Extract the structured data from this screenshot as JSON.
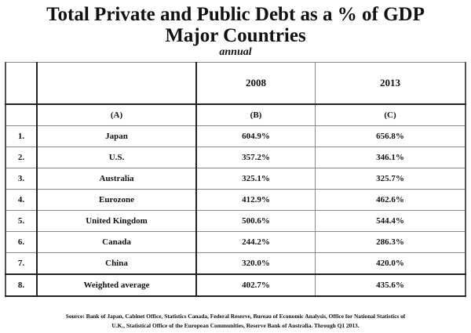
{
  "title_line1": "Total Private and Public Debt as a % of GDP",
  "title_line2": "Major Countries",
  "subtitle": "annual",
  "table": {
    "year_headers": [
      "2008",
      "2013"
    ],
    "column_labels": [
      "(A)",
      "(B)",
      "(C)"
    ],
    "rows": [
      {
        "num": "1.",
        "country": "Japan",
        "y2008": "604.9%",
        "y2013": "656.8%"
      },
      {
        "num": "2.",
        "country": "U.S.",
        "y2008": "357.2%",
        "y2013": "346.1%"
      },
      {
        "num": "3.",
        "country": "Australia",
        "y2008": "325.1%",
        "y2013": "325.7%"
      },
      {
        "num": "4.",
        "country": "Eurozone",
        "y2008": "412.9%",
        "y2013": "462.6%"
      },
      {
        "num": "5.",
        "country": "United Kingdom",
        "y2008": "500.6%",
        "y2013": "544.4%"
      },
      {
        "num": "6.",
        "country": "Canada",
        "y2008": "244.2%",
        "y2013": "286.3%"
      },
      {
        "num": "7.",
        "country": "China",
        "y2008": "320.0%",
        "y2013": "420.0%"
      },
      {
        "num": "8.",
        "country": "Weighted average",
        "y2008": "402.7%",
        "y2013": "435.6%"
      }
    ]
  },
  "source_line1": "Source: Bank of Japan, Cabinet Office, Statistics Canada, Federal Reserve, Bureau of Economic Analysis, Office for National Statistics of",
  "source_line2": "U.K., Statistical Office of the European Communities, Reserve Bank of Australia.   Through Q1 2013."
}
